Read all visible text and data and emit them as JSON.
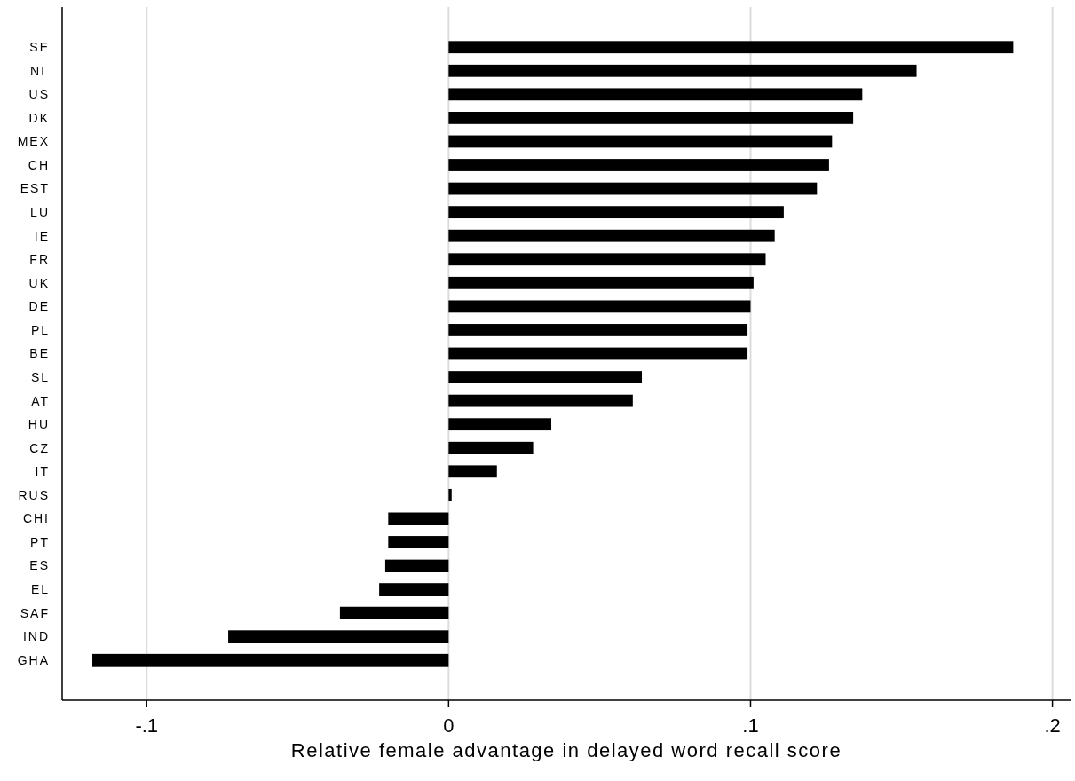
{
  "chart_data": {
    "type": "bar",
    "orientation": "horizontal",
    "xlabel": "Relative female advantage in delayed word recall score",
    "categories": [
      "SE",
      "NL",
      "US",
      "DK",
      "MEX",
      "CH",
      "EST",
      "LU",
      "IE",
      "FR",
      "UK",
      "DE",
      "PL",
      "BE",
      "SL",
      "AT",
      "HU",
      "CZ",
      "IT",
      "RUS",
      "CHI",
      "PT",
      "ES",
      "EL",
      "SAF",
      "IND",
      "GHA"
    ],
    "values": [
      0.187,
      0.155,
      0.137,
      0.134,
      0.127,
      0.126,
      0.122,
      0.111,
      0.108,
      0.105,
      0.101,
      0.1,
      0.099,
      0.099,
      0.064,
      0.061,
      0.034,
      0.028,
      0.016,
      0.001,
      -0.02,
      -0.02,
      -0.021,
      -0.023,
      -0.036,
      -0.073,
      -0.118
    ],
    "color": "#000000",
    "xlim": [
      -0.128,
      0.206
    ],
    "xticks": [
      {
        "value": -0.1,
        "label": "-.1"
      },
      0,
      {
        "value": 0.1,
        "label": ".1"
      },
      {
        "value": 0.2,
        "label": ".2"
      }
    ],
    "grid": "x"
  }
}
